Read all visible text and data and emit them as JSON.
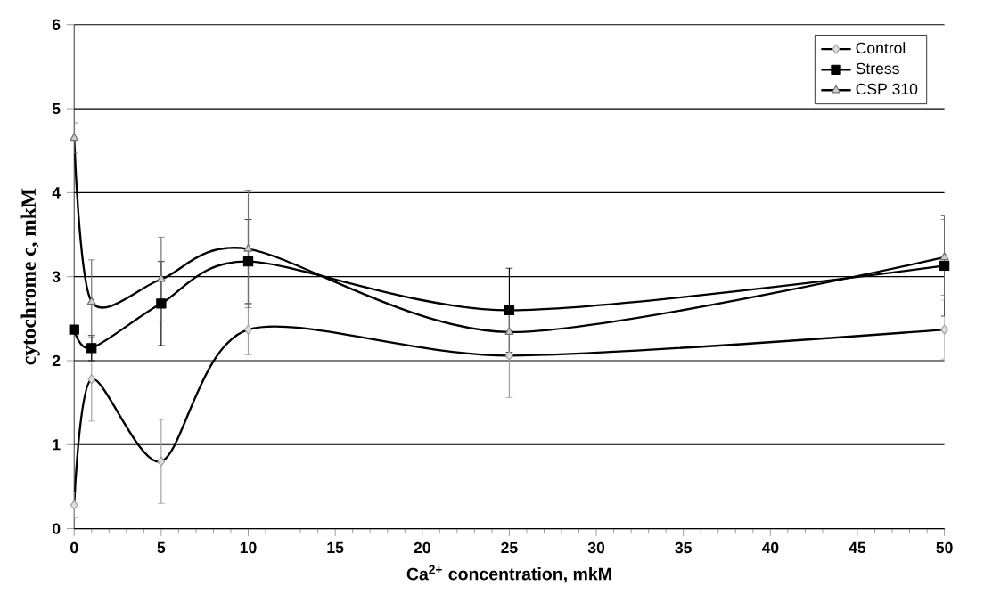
{
  "chart_data": {
    "type": "line",
    "xlabel": "Ca$^{2+}$ concentration, mkM",
    "ylabel": "cytochrome c, mkM",
    "x": [
      0,
      1,
      5,
      10,
      25,
      50
    ],
    "xlim": [
      0,
      50
    ],
    "xticks": [
      0,
      5,
      10,
      15,
      20,
      25,
      30,
      35,
      40,
      45,
      50
    ],
    "ylim": [
      0,
      6
    ],
    "yticks": [
      0,
      1,
      2,
      3,
      4,
      5,
      6
    ],
    "grid": "y",
    "legend": "top right",
    "series": [
      {
        "name": "Control",
        "color": "#a0a0a0",
        "marker": "diamond",
        "values": [
          0.28,
          1.78,
          0.8,
          2.37,
          2.06,
          2.37
        ],
        "errors": [
          0.15,
          0.5,
          0.5,
          0.3,
          0.5,
          0.35
        ]
      },
      {
        "name": "Stress",
        "color": "#000000",
        "marker": "square",
        "values": [
          2.37,
          2.15,
          2.68,
          3.18,
          2.6,
          3.13
        ],
        "errors": [
          null,
          0.15,
          0.5,
          0.5,
          0.5,
          0.6
        ]
      },
      {
        "name": "CSP 310",
        "color": "#707070",
        "marker": "triangle",
        "values": [
          4.65,
          2.7,
          2.97,
          3.33,
          2.34,
          3.23
        ],
        "errors": [
          0.18,
          0.5,
          0.5,
          0.7,
          0.3,
          0.45
        ]
      }
    ]
  }
}
